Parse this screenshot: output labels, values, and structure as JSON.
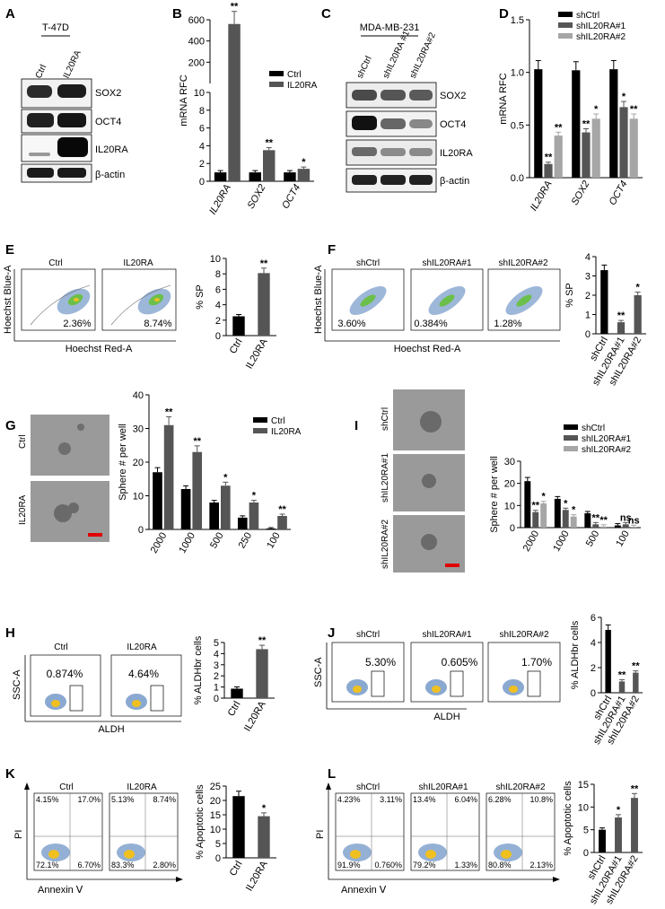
{
  "panel_letters": [
    "A",
    "B",
    "C",
    "D",
    "E",
    "F",
    "G",
    "I",
    "H",
    "J",
    "K",
    "L"
  ],
  "colors": {
    "black": "#000000",
    "dark_gray": "#555555",
    "light_gray": "#a6a6a6",
    "sig_red": "#e00000"
  },
  "blots": {
    "A": {
      "cell_line": "T-47D",
      "lanes": [
        "Ctrl",
        "IL20RA"
      ],
      "bands": [
        "SOX2",
        "OCT4",
        "IL20RA",
        "β-actin"
      ]
    },
    "C": {
      "cell_line": "MDA-MB-231",
      "lanes": [
        "shCtrl",
        "shIL20RA #1",
        "shIL20RA#2"
      ],
      "bands": [
        "SOX2",
        "OCT4",
        "IL20RA",
        "β-actin"
      ]
    }
  },
  "flow": {
    "E": {
      "panels": [
        "Ctrl",
        "IL20RA"
      ],
      "pcts": [
        "2.36%",
        "8.74%"
      ],
      "ylabel": "Hoechst Blue-A",
      "xlabel": "Hoechst Red-A"
    },
    "F": {
      "panels": [
        "shCtrl",
        "shIL20RA#1",
        "shIL20RA#2"
      ],
      "pcts": [
        "3.60%",
        "0.384%",
        "1.28%"
      ]
    },
    "H": {
      "panels": [
        "Ctrl",
        "IL20RA"
      ],
      "pcts": [
        "0.874%",
        "4.64%"
      ],
      "ylabel": "SSC-A",
      "xlabel": "ALDH"
    },
    "J": {
      "panels": [
        "shCtrl",
        "shIL20RA#1",
        "shIL20RA#2"
      ],
      "pcts": [
        "5.30%",
        "0.605%",
        "1.70%"
      ],
      "ylabel": "SSC-A",
      "xlabel": "ALDH"
    },
    "K": {
      "panels": [
        "Ctrl",
        "IL20RA"
      ],
      "quads": [
        [
          "4.15%",
          "17.0%",
          "72.1%",
          "6.70%"
        ],
        [
          "5.13%",
          "8.74%",
          "83.3%",
          "2.80%"
        ]
      ],
      "ylabel": "PI",
      "xlabel": "Annexin Ⅴ"
    },
    "L": {
      "panels": [
        "shCtrl",
        "shIL20RA#1",
        "shIL20RA#2"
      ],
      "quads": [
        [
          "4.23%",
          "3.11%",
          "91.9%",
          "0.760%"
        ],
        [
          "13.4%",
          "6.04%",
          "79.2%",
          "1.33%"
        ],
        [
          "6.28%",
          "10.8%",
          "80.8%",
          "2.13%"
        ]
      ],
      "ylabel": "PI",
      "xlabel": "Annexin Ⅴ"
    }
  },
  "sphere_images": {
    "G": [
      "Ctrl",
      "IL20RA"
    ],
    "I": [
      "shCtrl",
      "shIL20RA#1",
      "shIL20RA#2"
    ]
  },
  "chart_data": [
    {
      "panel": "B",
      "type": "bar",
      "ylabel": "mRNA RFC",
      "categories": [
        "IL20RA",
        "SOX2",
        "OCT4"
      ],
      "series": [
        {
          "name": "Ctrl",
          "values": [
            1,
            1,
            1
          ]
        },
        {
          "name": "IL20RA",
          "values": [
            560,
            3.5,
            1.4
          ]
        }
      ],
      "yticks": [
        "0",
        "2",
        "4",
        "6",
        "8",
        "10",
        "200",
        "400",
        "600"
      ],
      "sig": [
        "**",
        "**",
        "*"
      ]
    },
    {
      "panel": "D",
      "type": "bar",
      "ylabel": "mRNA RFC",
      "categories": [
        "IL20RA",
        "SOX2",
        "OCT4"
      ],
      "series": [
        {
          "name": "shCtrl",
          "values": [
            1.03,
            1.02,
            1.03
          ]
        },
        {
          "name": "shIL20RA#1",
          "values": [
            0.13,
            0.43,
            0.67
          ]
        },
        {
          "name": "shIL20RA#2",
          "values": [
            0.4,
            0.56,
            0.56
          ]
        }
      ],
      "ylim": [
        0,
        1.5
      ],
      "yticks": [
        "0.0",
        "0.5",
        "1.0",
        "1.5"
      ],
      "sig": [
        "**",
        "**",
        "**",
        "*",
        "*",
        "**"
      ]
    },
    {
      "panel": "E",
      "type": "bar",
      "ylabel": "% SP",
      "categories": [
        "Ctrl",
        "IL20RA"
      ],
      "values": [
        2.5,
        8.1
      ],
      "ylim": [
        0,
        10
      ],
      "yticks": [
        "0",
        "2",
        "4",
        "6",
        "8",
        "10"
      ],
      "sig": [
        "**"
      ]
    },
    {
      "panel": "F",
      "type": "bar",
      "ylabel": "% SP",
      "categories": [
        "shCtrl",
        "shIL20RA#1",
        "shIL20RA#2"
      ],
      "values": [
        3.3,
        0.6,
        2.0
      ],
      "ylim": [
        0,
        4
      ],
      "yticks": [
        "0",
        "1",
        "2",
        "3",
        "4"
      ],
      "sig": [
        "**",
        "*"
      ]
    },
    {
      "panel": "G",
      "type": "bar",
      "ylabel": "Sphere # per well",
      "categories": [
        "2000",
        "1000",
        "500",
        "250",
        "100"
      ],
      "series": [
        {
          "name": "Ctrl",
          "values": [
            17,
            12,
            8,
            3.5,
            0
          ]
        },
        {
          "name": "IL20RA",
          "values": [
            31,
            23,
            13,
            8,
            4
          ]
        }
      ],
      "ylim": [
        0,
        40
      ],
      "yticks": [
        "0",
        "10",
        "20",
        "30",
        "40"
      ],
      "sig": [
        "**",
        "**",
        "*",
        "*",
        "**"
      ]
    },
    {
      "panel": "I",
      "type": "bar",
      "ylabel": "Sphere # per well",
      "categories": [
        "2000",
        "1000",
        "500",
        "100"
      ],
      "series": [
        {
          "name": "shCtrl",
          "values": [
            21,
            13,
            6.5,
            1
          ]
        },
        {
          "name": "shIL20RA#1",
          "values": [
            7,
            8,
            1.5,
            1.5
          ]
        },
        {
          "name": "shIL20RA#2",
          "values": [
            11,
            5,
            0.5,
            0.3
          ]
        }
      ],
      "ylim": [
        0,
        30
      ],
      "yticks": [
        "0",
        "10",
        "20",
        "30"
      ],
      "sig": [
        "**",
        "*",
        "*",
        "*",
        "**",
        "**",
        "ns",
        "ns"
      ]
    },
    {
      "panel": "H",
      "type": "bar",
      "ylabel": "% ALDHbr cells",
      "categories": [
        "Ctrl",
        "IL20RA"
      ],
      "values": [
        0.85,
        4.4
      ],
      "ylim": [
        0,
        5
      ],
      "yticks": [
        "0",
        "1",
        "2",
        "3",
        "4",
        "5"
      ],
      "sig": [
        "**"
      ]
    },
    {
      "panel": "J",
      "type": "bar",
      "ylabel": "% ALDHbr cells",
      "categories": [
        "shCtrl",
        "shIL20RA#1",
        "shIL20RA#2"
      ],
      "values": [
        5.0,
        0.9,
        1.6
      ],
      "ylim": [
        0,
        6
      ],
      "yticks": [
        "0",
        "2",
        "4",
        "6"
      ],
      "sig": [
        "**",
        "**"
      ]
    },
    {
      "panel": "K",
      "type": "bar",
      "ylabel": "% Apoptotic cells",
      "categories": [
        "Ctrl",
        "IL20RA"
      ],
      "values": [
        21.5,
        14.5
      ],
      "ylim": [
        0,
        25
      ],
      "yticks": [
        "0",
        "5",
        "10",
        "15",
        "20",
        "25"
      ],
      "sig": [
        "*"
      ]
    },
    {
      "panel": "L",
      "type": "bar",
      "ylabel": "% Apoptotic cells",
      "categories": [
        "shCtrl",
        "shIL20RA#1",
        "shIL20RA#2"
      ],
      "values": [
        5,
        7.7,
        12
      ],
      "ylim": [
        0,
        15
      ],
      "yticks": [
        "0",
        "5",
        "10",
        "15"
      ],
      "sig": [
        "*",
        "**"
      ]
    }
  ]
}
